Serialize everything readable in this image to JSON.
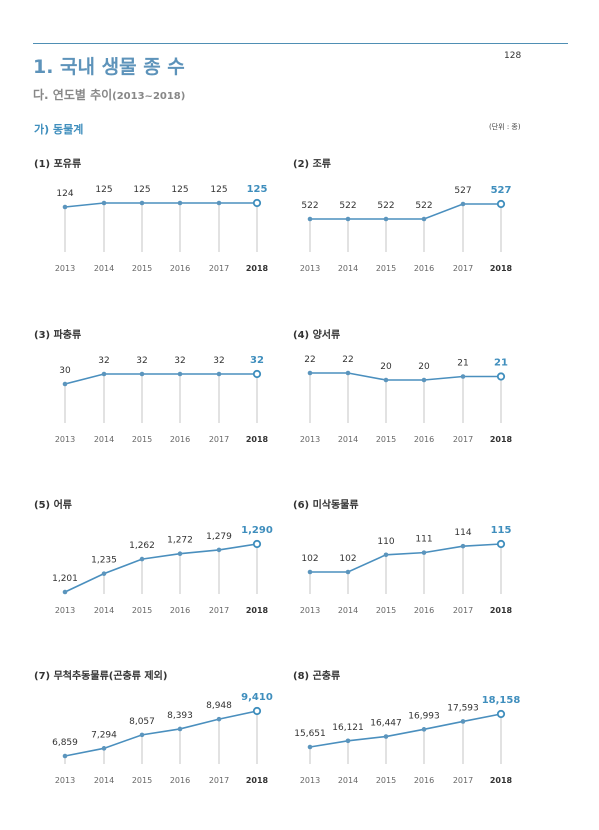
{
  "page": {
    "title": "1. 국내 생물 종 수",
    "page_number": "128",
    "subtitle": "다. 연도별 추이",
    "subtitle_years": "(2013~2018)",
    "section": "가) 동물계",
    "unit": "(단위 : 종)"
  },
  "colors": {
    "accent": "#3f8ebd",
    "line": "#4a8fbe",
    "marker": "#5b95bd",
    "grid": "#c4c4c4",
    "title_blue": "#5d93ba"
  },
  "chart_data": [
    {
      "type": "line",
      "title": "(1) 포유류",
      "categories": [
        "2013",
        "2014",
        "2015",
        "2016",
        "2017",
        "2018"
      ],
      "values": [
        124,
        125,
        125,
        125,
        125,
        125
      ],
      "labels": [
        "124",
        "125",
        "125",
        "125",
        "125",
        "125"
      ],
      "highlight_index": 5
    },
    {
      "type": "line",
      "title": "(2) 조류",
      "categories": [
        "2013",
        "2014",
        "2015",
        "2016",
        "2017",
        "2018"
      ],
      "values": [
        522,
        522,
        522,
        522,
        527,
        527
      ],
      "labels": [
        "522",
        "522",
        "522",
        "522",
        "527",
        "527"
      ],
      "highlight_index": 5
    },
    {
      "type": "line",
      "title": "(3) 파충류",
      "categories": [
        "2013",
        "2014",
        "2015",
        "2016",
        "2017",
        "2018"
      ],
      "values": [
        30,
        32,
        32,
        32,
        32,
        32
      ],
      "labels": [
        "30",
        "32",
        "32",
        "32",
        "32",
        "32"
      ],
      "highlight_index": 5
    },
    {
      "type": "line",
      "title": "(4) 양서류",
      "categories": [
        "2013",
        "2014",
        "2015",
        "2016",
        "2017",
        "2018"
      ],
      "values": [
        22,
        22,
        20,
        20,
        21,
        21
      ],
      "labels": [
        "22",
        "22",
        "20",
        "20",
        "21",
        "21"
      ],
      "highlight_index": 5
    },
    {
      "type": "line",
      "title": "(5) 어류",
      "categories": [
        "2013",
        "2014",
        "2015",
        "2016",
        "2017",
        "2018"
      ],
      "values": [
        1201,
        1235,
        1262,
        1272,
        1279,
        1290
      ],
      "labels": [
        "1,201",
        "1,235",
        "1,262",
        "1,272",
        "1,279",
        "1,290"
      ],
      "highlight_index": 5
    },
    {
      "type": "line",
      "title": "(6) 미삭동물류",
      "categories": [
        "2013",
        "2014",
        "2015",
        "2016",
        "2017",
        "2018"
      ],
      "values": [
        102,
        102,
        110,
        111,
        114,
        115
      ],
      "labels": [
        "102",
        "102",
        "110",
        "111",
        "114",
        "115"
      ],
      "highlight_index": 5
    },
    {
      "type": "line",
      "title": "(7) 무척추동물류(곤충류 제외)",
      "categories": [
        "2013",
        "2014",
        "2015",
        "2016",
        "2017",
        "2018"
      ],
      "values": [
        6859,
        7294,
        8057,
        8393,
        8948,
        9410
      ],
      "labels": [
        "6,859",
        "7,294",
        "8,057",
        "8,393",
        "8,948",
        "9,410"
      ],
      "highlight_index": 5
    },
    {
      "type": "line",
      "title": "(8) 곤충류",
      "categories": [
        "2013",
        "2014",
        "2015",
        "2016",
        "2017",
        "2018"
      ],
      "values": [
        15651,
        16121,
        16447,
        16993,
        17593,
        18158
      ],
      "labels": [
        "15,651",
        "16,121",
        "16,447",
        "16,993",
        "17,593",
        "18,158"
      ],
      "highlight_index": 5
    }
  ]
}
